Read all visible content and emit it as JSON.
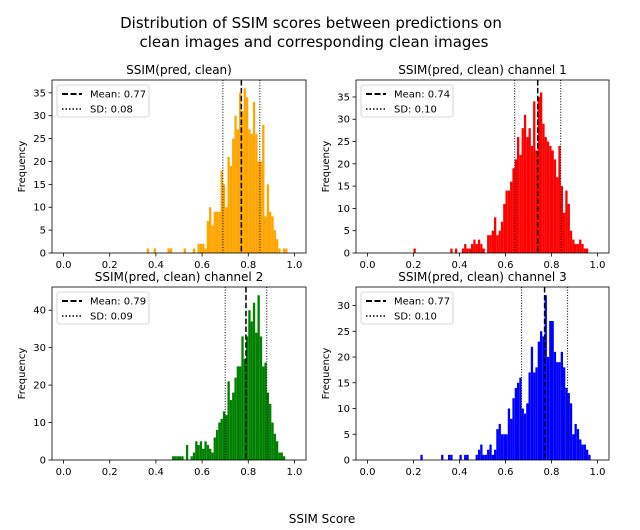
{
  "suptitle_lines": [
    "Distribution of SSIM scores between predictions on",
    "clean images and corresponding clean images"
  ],
  "supxlabel": "SSIM Score",
  "chart_data": [
    {
      "type": "bar",
      "title": "SSIM(pred, clean)",
      "ylabel": "Frequency",
      "color": "#ffa500",
      "xlim": [
        -0.05,
        1.05
      ],
      "ylim": [
        0,
        37.8
      ],
      "xticks": [
        0.0,
        0.2,
        0.4,
        0.6,
        0.8,
        1.0
      ],
      "yticks": [
        0,
        5,
        10,
        15,
        20,
        25,
        30,
        35
      ],
      "bin_width": 0.01,
      "mean": 0.77,
      "sd": 0.08,
      "legend": [
        "Mean: 0.77",
        "SD: 0.08"
      ],
      "bins": [
        [
          0.36,
          1
        ],
        [
          0.39,
          1
        ],
        [
          0.45,
          1
        ],
        [
          0.46,
          1
        ],
        [
          0.52,
          1
        ],
        [
          0.56,
          1
        ],
        [
          0.58,
          2
        ],
        [
          0.59,
          2
        ],
        [
          0.6,
          2
        ],
        [
          0.61,
          1
        ],
        [
          0.62,
          7
        ],
        [
          0.63,
          10
        ],
        [
          0.64,
          6
        ],
        [
          0.65,
          9
        ],
        [
          0.66,
          9
        ],
        [
          0.67,
          9
        ],
        [
          0.68,
          18
        ],
        [
          0.69,
          15
        ],
        [
          0.7,
          10
        ],
        [
          0.71,
          21
        ],
        [
          0.72,
          19
        ],
        [
          0.73,
          25
        ],
        [
          0.74,
          30
        ],
        [
          0.75,
          27
        ],
        [
          0.76,
          35
        ],
        [
          0.77,
          31
        ],
        [
          0.78,
          36
        ],
        [
          0.79,
          34
        ],
        [
          0.8,
          27
        ],
        [
          0.81,
          26
        ],
        [
          0.82,
          33
        ],
        [
          0.83,
          26
        ],
        [
          0.84,
          20
        ],
        [
          0.85,
          20
        ],
        [
          0.86,
          28
        ],
        [
          0.87,
          8
        ],
        [
          0.88,
          15
        ],
        [
          0.89,
          9
        ],
        [
          0.9,
          8
        ],
        [
          0.91,
          5
        ],
        [
          0.92,
          3
        ],
        [
          0.93,
          1
        ],
        [
          0.95,
          1
        ],
        [
          0.96,
          1
        ]
      ]
    },
    {
      "type": "bar",
      "title": "SSIM(pred, clean) channel 1",
      "ylabel": "Frequency",
      "color": "#ff0000",
      "xlim": [
        -0.05,
        1.05
      ],
      "ylim": [
        0,
        38.8
      ],
      "xticks": [
        0.0,
        0.2,
        0.4,
        0.6,
        0.8,
        1.0
      ],
      "yticks": [
        0,
        5,
        10,
        15,
        20,
        25,
        30,
        35
      ],
      "bin_width": 0.01,
      "mean": 0.74,
      "sd": 0.1,
      "legend": [
        "Mean: 0.74",
        "SD: 0.10"
      ],
      "bins": [
        [
          0.2,
          1
        ],
        [
          0.36,
          1
        ],
        [
          0.38,
          1
        ],
        [
          0.41,
          1
        ],
        [
          0.42,
          2
        ],
        [
          0.43,
          1
        ],
        [
          0.44,
          1
        ],
        [
          0.45,
          2
        ],
        [
          0.46,
          3
        ],
        [
          0.47,
          2
        ],
        [
          0.48,
          3
        ],
        [
          0.49,
          2
        ],
        [
          0.5,
          1
        ],
        [
          0.52,
          4
        ],
        [
          0.53,
          4
        ],
        [
          0.54,
          5
        ],
        [
          0.55,
          8
        ],
        [
          0.56,
          4
        ],
        [
          0.57,
          5
        ],
        [
          0.58,
          7
        ],
        [
          0.59,
          11
        ],
        [
          0.6,
          14
        ],
        [
          0.61,
          14
        ],
        [
          0.62,
          16
        ],
        [
          0.63,
          19
        ],
        [
          0.64,
          21
        ],
        [
          0.65,
          26
        ],
        [
          0.66,
          22
        ],
        [
          0.67,
          28
        ],
        [
          0.68,
          31
        ],
        [
          0.69,
          26
        ],
        [
          0.7,
          28
        ],
        [
          0.71,
          24
        ],
        [
          0.72,
          34
        ],
        [
          0.73,
          23
        ],
        [
          0.74,
          35
        ],
        [
          0.75,
          36
        ],
        [
          0.76,
          29
        ],
        [
          0.77,
          26
        ],
        [
          0.78,
          25
        ],
        [
          0.79,
          24
        ],
        [
          0.8,
          23
        ],
        [
          0.81,
          21
        ],
        [
          0.82,
          17
        ],
        [
          0.83,
          24
        ],
        [
          0.84,
          15
        ],
        [
          0.85,
          9
        ],
        [
          0.86,
          14
        ],
        [
          0.87,
          11
        ],
        [
          0.88,
          5
        ],
        [
          0.89,
          3
        ],
        [
          0.9,
          2
        ],
        [
          0.91,
          2
        ],
        [
          0.92,
          3
        ],
        [
          0.93,
          2
        ],
        [
          0.94,
          1
        ],
        [
          0.95,
          1
        ]
      ]
    },
    {
      "type": "bar",
      "title": "SSIM(pred, clean) channel 2",
      "ylabel": "Frequency",
      "color": "#008000",
      "xlim": [
        -0.05,
        1.05
      ],
      "ylim": [
        0,
        46.2
      ],
      "xticks": [
        0.0,
        0.2,
        0.4,
        0.6,
        0.8,
        1.0
      ],
      "yticks": [
        0,
        10,
        20,
        30,
        40
      ],
      "bin_width": 0.01,
      "mean": 0.79,
      "sd": 0.09,
      "legend": [
        "Mean: 0.79",
        "SD: 0.09"
      ],
      "bins": [
        [
          0.47,
          1
        ],
        [
          0.48,
          1
        ],
        [
          0.49,
          1
        ],
        [
          0.5,
          1
        ],
        [
          0.51,
          1
        ],
        [
          0.53,
          4
        ],
        [
          0.55,
          1
        ],
        [
          0.56,
          2
        ],
        [
          0.57,
          5
        ],
        [
          0.58,
          4
        ],
        [
          0.59,
          5
        ],
        [
          0.6,
          3
        ],
        [
          0.61,
          5
        ],
        [
          0.62,
          4
        ],
        [
          0.63,
          3
        ],
        [
          0.64,
          2
        ],
        [
          0.65,
          6
        ],
        [
          0.66,
          8
        ],
        [
          0.67,
          10
        ],
        [
          0.68,
          11
        ],
        [
          0.69,
          13
        ],
        [
          0.7,
          12
        ],
        [
          0.71,
          21
        ],
        [
          0.72,
          16
        ],
        [
          0.73,
          18
        ],
        [
          0.74,
          22
        ],
        [
          0.75,
          25
        ],
        [
          0.76,
          25
        ],
        [
          0.77,
          33
        ],
        [
          0.78,
          27
        ],
        [
          0.79,
          33
        ],
        [
          0.8,
          40
        ],
        [
          0.81,
          37
        ],
        [
          0.82,
          42
        ],
        [
          0.83,
          34
        ],
        [
          0.84,
          44
        ],
        [
          0.85,
          33
        ],
        [
          0.86,
          25
        ],
        [
          0.87,
          26
        ],
        [
          0.88,
          18
        ],
        [
          0.89,
          15
        ],
        [
          0.9,
          10
        ],
        [
          0.91,
          7
        ],
        [
          0.92,
          5
        ],
        [
          0.93,
          2
        ],
        [
          0.94,
          2
        ],
        [
          0.95,
          1
        ]
      ]
    },
    {
      "type": "bar",
      "title": "SSIM(pred, clean) channel 3",
      "ylabel": "Frequency",
      "color": "#0000ff",
      "xlim": [
        -0.05,
        1.05
      ],
      "ylim": [
        0,
        33.6
      ],
      "xticks": [
        0.0,
        0.2,
        0.4,
        0.6,
        0.8,
        1.0
      ],
      "yticks": [
        0,
        5,
        10,
        15,
        20,
        25,
        30
      ],
      "bin_width": 0.01,
      "mean": 0.77,
      "sd": 0.1,
      "legend": [
        "Mean: 0.77",
        "SD: 0.10"
      ],
      "bins": [
        [
          0.23,
          1
        ],
        [
          0.32,
          1
        ],
        [
          0.35,
          1
        ],
        [
          0.36,
          1
        ],
        [
          0.4,
          1
        ],
        [
          0.42,
          1
        ],
        [
          0.43,
          1
        ],
        [
          0.47,
          1
        ],
        [
          0.48,
          2
        ],
        [
          0.49,
          3
        ],
        [
          0.5,
          1
        ],
        [
          0.51,
          1
        ],
        [
          0.52,
          2
        ],
        [
          0.53,
          3
        ],
        [
          0.54,
          1
        ],
        [
          0.55,
          2
        ],
        [
          0.56,
          6
        ],
        [
          0.57,
          7
        ],
        [
          0.58,
          5
        ],
        [
          0.59,
          5
        ],
        [
          0.6,
          5
        ],
        [
          0.61,
          10
        ],
        [
          0.62,
          8
        ],
        [
          0.63,
          12
        ],
        [
          0.64,
          14
        ],
        [
          0.65,
          15
        ],
        [
          0.66,
          16
        ],
        [
          0.67,
          10
        ],
        [
          0.68,
          9
        ],
        [
          0.69,
          11
        ],
        [
          0.7,
          17
        ],
        [
          0.71,
          22
        ],
        [
          0.72,
          17
        ],
        [
          0.73,
          18
        ],
        [
          0.74,
          23
        ],
        [
          0.75,
          25
        ],
        [
          0.76,
          24
        ],
        [
          0.77,
          32
        ],
        [
          0.78,
          20
        ],
        [
          0.79,
          27
        ],
        [
          0.8,
          27
        ],
        [
          0.81,
          21
        ],
        [
          0.82,
          19
        ],
        [
          0.83,
          19
        ],
        [
          0.84,
          21
        ],
        [
          0.85,
          18
        ],
        [
          0.86,
          14
        ],
        [
          0.87,
          13
        ],
        [
          0.88,
          11
        ],
        [
          0.89,
          5
        ],
        [
          0.9,
          7
        ],
        [
          0.91,
          6
        ],
        [
          0.92,
          4
        ],
        [
          0.93,
          3
        ],
        [
          0.94,
          3
        ],
        [
          0.95,
          2
        ],
        [
          0.96,
          1
        ]
      ]
    }
  ]
}
